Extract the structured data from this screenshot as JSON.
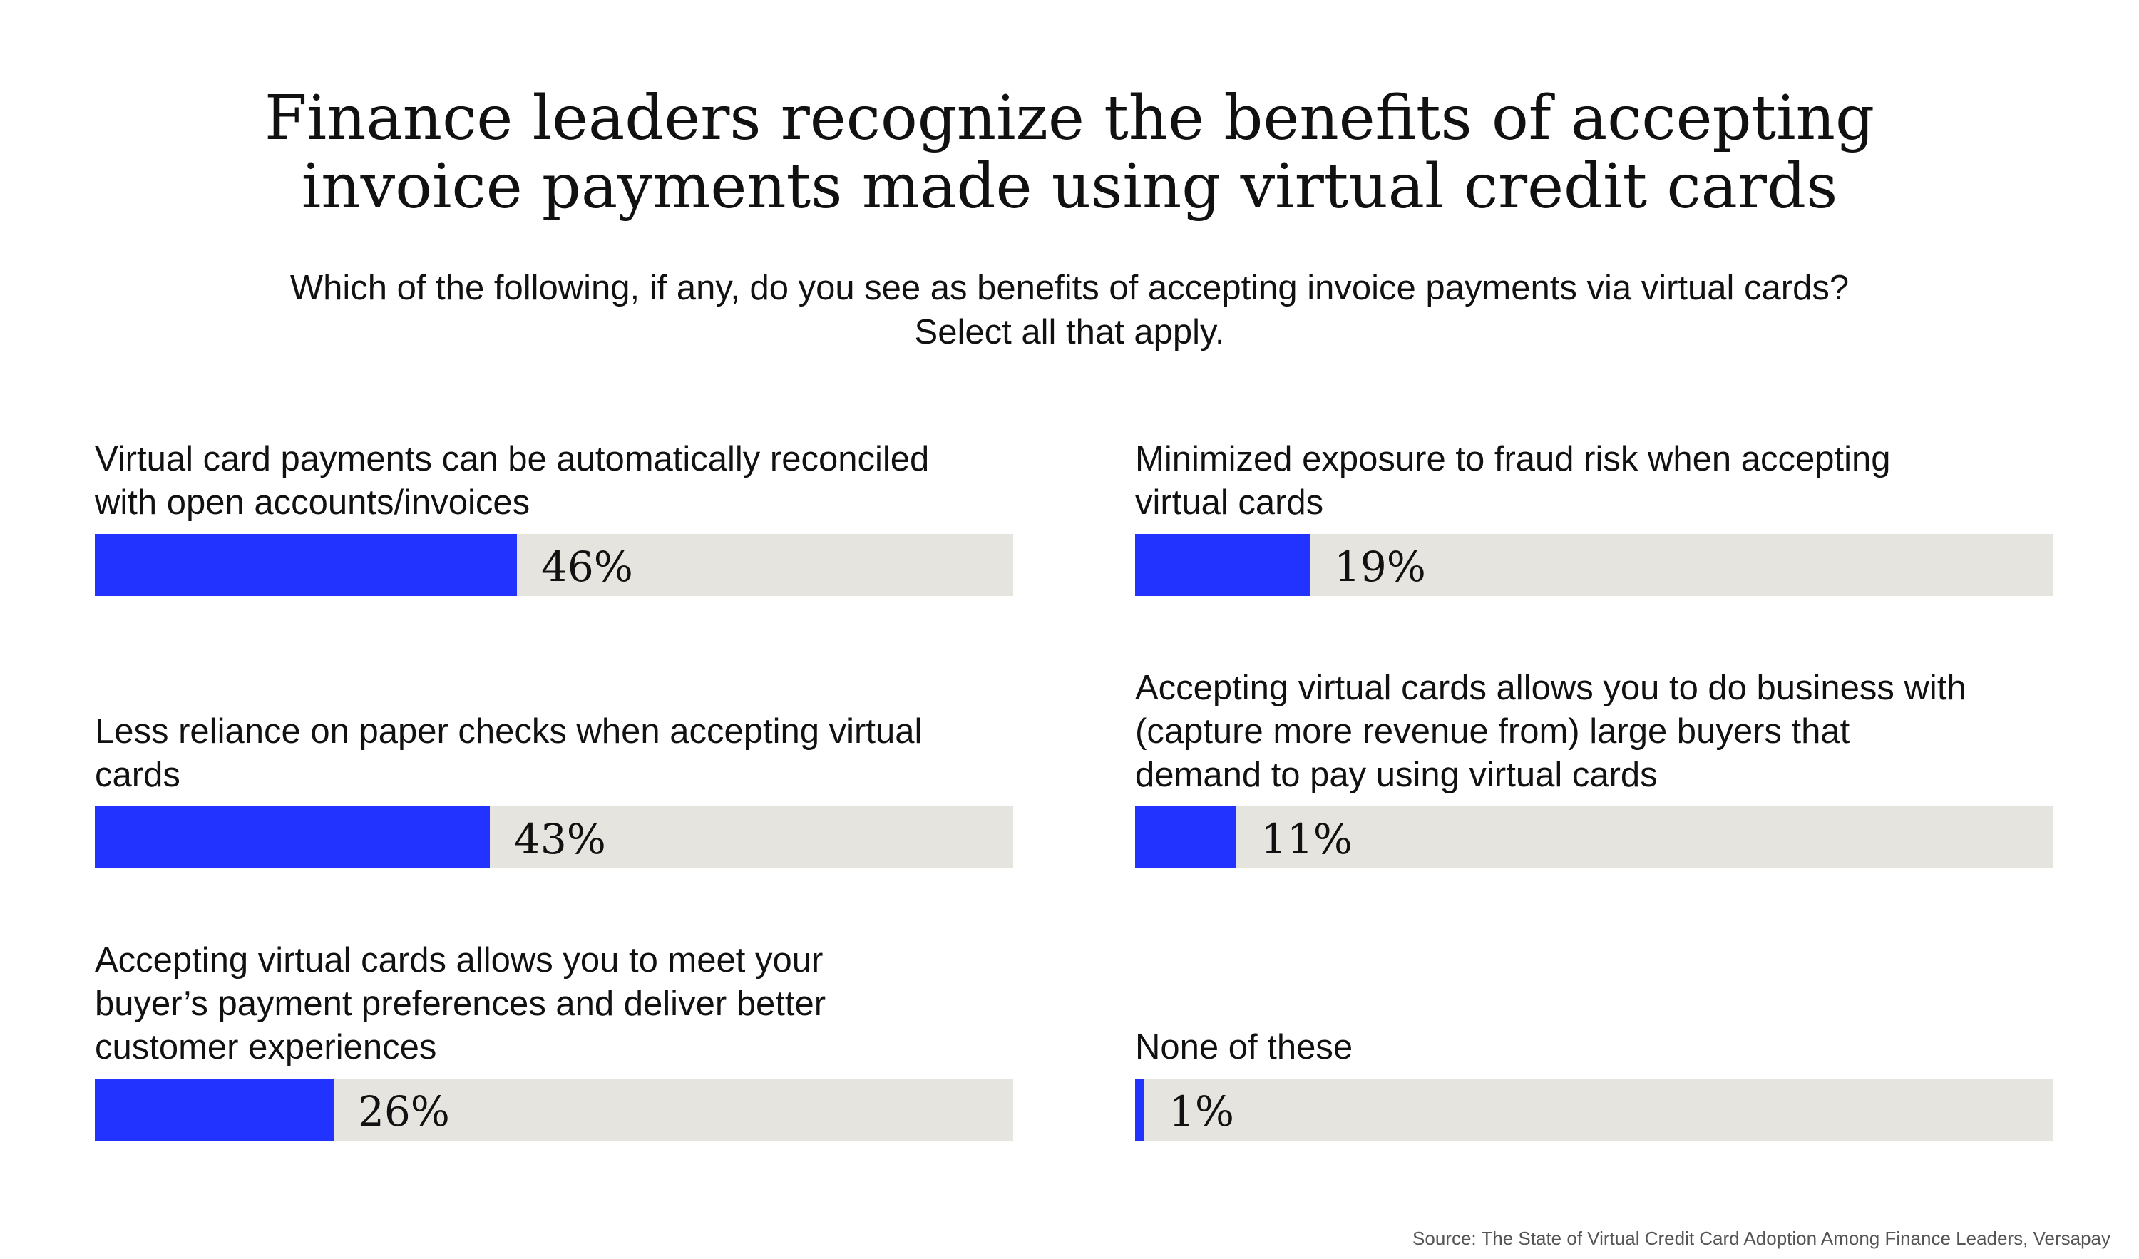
{
  "title_lines": [
    "Finance leaders recognize the benefits of accepting",
    "invoice payments made using virtual credit cards"
  ],
  "subtitle_lines": [
    "Which of the following, if any, do you see as benefits of accepting invoice payments via virtual cards?",
    "Select all that apply."
  ],
  "source": "Source: The State of Virtual Credit Card Adoption Among Finance Leaders, Versapay",
  "colors": {
    "bar_fill": "#2233ff",
    "bar_track": "#e5e4df"
  },
  "chart_data": {
    "type": "bar",
    "orientation": "horizontal",
    "xlim": [
      0,
      100
    ],
    "unit": "%",
    "categories": [
      [
        "Virtual card payments can be automatically reconciled",
        "with open accounts/invoices"
      ],
      [
        "Less reliance on paper checks when accepting virtual",
        "cards"
      ],
      [
        "Accepting virtual cards allows you to meet your",
        "buyer’s payment preferences and deliver better",
        "customer experiences"
      ],
      [
        "Minimized exposure to fraud risk when accepting",
        "virtual cards"
      ],
      [
        "Accepting virtual cards allows you to do business with",
        "(capture more revenue from) large buyers that",
        "demand to pay using virtual cards"
      ],
      [
        "None of these"
      ]
    ],
    "values": [
      46,
      43,
      26,
      19,
      11,
      1
    ],
    "value_labels": [
      "46%",
      "43%",
      "26%",
      "19%",
      "11%",
      "1%"
    ]
  }
}
